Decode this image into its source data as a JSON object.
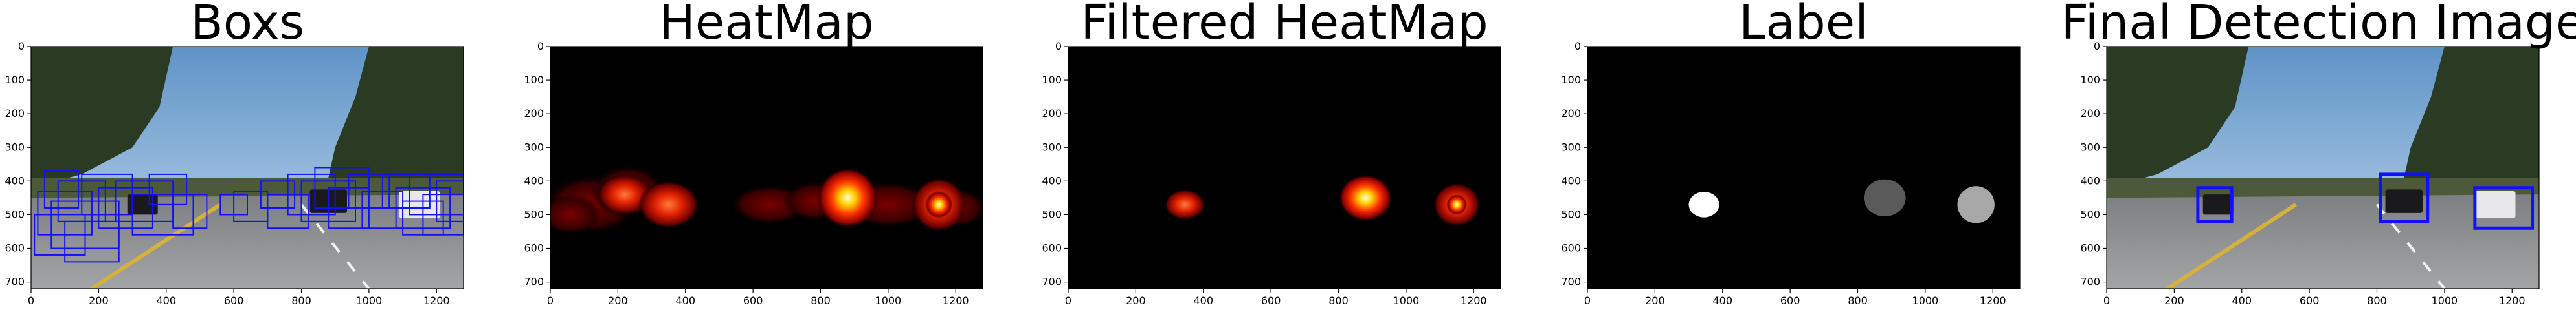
{
  "figure": {
    "panels": [
      {
        "id": "boxs",
        "title": "Boxs",
        "kind": "road-boxes",
        "x_ticks": [
          "0",
          "200",
          "400",
          "600",
          "800",
          "1000",
          "1200"
        ],
        "y_ticks": [
          "0",
          "100",
          "200",
          "300",
          "400",
          "500",
          "600",
          "700"
        ]
      },
      {
        "id": "heatmap",
        "title": "HeatMap",
        "kind": "heatmap",
        "x_ticks": [
          "0",
          "200",
          "400",
          "600",
          "800",
          "1000",
          "1200"
        ],
        "y_ticks": [
          "0",
          "100",
          "200",
          "300",
          "400",
          "500",
          "600",
          "700"
        ]
      },
      {
        "id": "filtered-heatmap",
        "title": "Filtered HeatMap",
        "kind": "heatmap-filtered",
        "x_ticks": [
          "0",
          "200",
          "400",
          "600",
          "800",
          "1000",
          "1200"
        ],
        "y_ticks": [
          "0",
          "100",
          "200",
          "300",
          "400",
          "500",
          "600",
          "700"
        ]
      },
      {
        "id": "label",
        "title": "Label",
        "kind": "labels",
        "x_ticks": [
          "0",
          "200",
          "400",
          "600",
          "800",
          "1000",
          "1200"
        ],
        "y_ticks": [
          "0",
          "100",
          "200",
          "300",
          "400",
          "500",
          "600",
          "700"
        ]
      },
      {
        "id": "final-detection",
        "title": "Final Detection Image",
        "kind": "road-final",
        "x_ticks": [
          "0",
          "200",
          "400",
          "600",
          "800",
          "1000",
          "1200"
        ],
        "y_ticks": [
          "0",
          "100",
          "200",
          "300",
          "400",
          "500",
          "600",
          "700"
        ]
      }
    ],
    "image_extent": {
      "x": [
        0,
        1280
      ],
      "y": [
        0,
        720
      ]
    },
    "colors": {
      "sky_top": "#5f93c6",
      "sky_bottom": "#b7d2ea",
      "tree": "#2b3a22",
      "road": "#8a8c8f",
      "box_blue": "#1010ff",
      "heat_bg": "#000000",
      "heat_red": "#b00000",
      "heat_yellow": "#ffff80"
    }
  }
}
